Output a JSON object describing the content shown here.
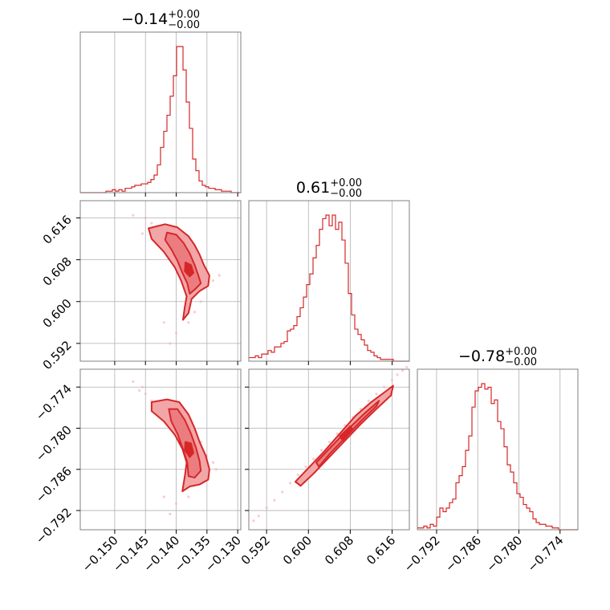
{
  "chart_data": {
    "type": "corner",
    "colors": {
      "line": "#d62728",
      "fill": "#f2a6a8",
      "scatter": "#f4b8bb",
      "grid": "#b0b0b0",
      "frame": "#808080"
    },
    "titles": [
      {
        "main": "−0.14",
        "sup": "+0.00",
        "sub": "−0.00"
      },
      {
        "main": "0.61",
        "sup": "+0.00",
        "sub": "−0.00"
      },
      {
        "main": "−0.78",
        "sup": "+0.00",
        "sub": "−0.00"
      }
    ],
    "params": [
      {
        "range": [
          -0.1556,
          -0.1295
        ],
        "ticks": [
          -0.15,
          -0.145,
          -0.14,
          -0.135,
          -0.13
        ],
        "tick_labels": [
          "−0.150",
          "−0.145",
          "−0.140",
          "−0.135",
          "−0.130"
        ]
      },
      {
        "range": [
          0.5886,
          0.6193
        ],
        "ticks": [
          0.592,
          0.6,
          0.608,
          0.616
        ],
        "tick_labels": [
          "0.592",
          "0.600",
          "0.608",
          "0.616"
        ]
      },
      {
        "range": [
          -0.7948,
          -0.7714
        ],
        "ticks": [
          -0.792,
          -0.786,
          -0.78,
          -0.774
        ],
        "tick_labels": [
          "−0.792",
          "−0.786",
          "−0.780",
          "−0.774"
        ]
      }
    ],
    "hist": [
      {
        "name": "param0",
        "bin_edges_start": -0.1556,
        "bin_width": 0.000522,
        "counts": [
          0,
          0,
          0,
          0,
          0,
          0,
          0,
          0,
          1,
          1,
          2,
          1,
          2,
          1,
          3,
          3,
          4,
          5,
          5,
          6,
          6,
          7,
          9,
          12,
          19,
          31,
          42,
          53,
          66,
          80,
          100,
          100,
          84,
          62,
          44,
          23,
          15,
          8,
          5,
          4,
          3,
          3,
          2,
          2,
          1,
          1,
          1,
          0,
          0,
          0
        ]
      },
      {
        "name": "param1",
        "bin_edges_start": 0.5886,
        "bin_width": 0.000614,
        "counts": [
          2,
          2,
          3,
          2,
          4,
          4,
          6,
          5,
          8,
          8,
          10,
          11,
          17,
          18,
          20,
          25,
          30,
          36,
          43,
          49,
          58,
          65,
          74,
          80,
          82,
          76,
          82,
          74,
          78,
          68,
          55,
          38,
          26,
          18,
          15,
          12,
          9,
          6,
          5,
          3,
          2,
          1,
          1,
          1,
          1,
          0,
          0,
          0,
          0,
          0
        ]
      },
      {
        "name": "param2",
        "bin_edges_start": -0.7948,
        "bin_width": 0.000468,
        "counts": [
          1,
          1,
          2,
          1,
          3,
          2,
          7,
          12,
          10,
          12,
          15,
          17,
          26,
          30,
          35,
          44,
          52,
          68,
          77,
          79,
          81,
          78,
          79,
          70,
          72,
          60,
          56,
          46,
          36,
          32,
          26,
          20,
          18,
          14,
          12,
          10,
          6,
          4,
          3,
          3,
          2,
          2,
          1,
          1,
          0,
          0,
          0,
          0,
          0,
          0
        ]
      }
    ],
    "panels_2d": [
      {
        "x_param": 0,
        "y_param": 1,
        "points": [
          [
            -0.147,
            0.6165
          ],
          [
            -0.1455,
            0.613
          ],
          [
            -0.144,
            0.615
          ],
          [
            -0.143,
            0.614
          ],
          [
            -0.142,
            0.612
          ],
          [
            -0.141,
            0.6125
          ],
          [
            -0.14,
            0.611
          ],
          [
            -0.139,
            0.61
          ],
          [
            -0.138,
            0.608
          ],
          [
            -0.1375,
            0.606
          ],
          [
            -0.137,
            0.604
          ],
          [
            -0.1365,
            0.602
          ],
          [
            -0.136,
            0.6
          ],
          [
            -0.137,
            0.598
          ],
          [
            -0.138,
            0.596
          ],
          [
            -0.14,
            0.594
          ],
          [
            -0.141,
            0.592
          ],
          [
            -0.135,
            0.603
          ],
          [
            -0.134,
            0.604
          ],
          [
            -0.136,
            0.607
          ],
          [
            -0.145,
            0.616
          ],
          [
            -0.1435,
            0.612
          ],
          [
            -0.1395,
            0.609
          ],
          [
            -0.1385,
            0.604
          ],
          [
            -0.142,
            0.596
          ],
          [
            -0.133,
            0.605
          ]
        ],
        "contour_outer": [
          [
            -0.1445,
            0.614
          ],
          [
            -0.1418,
            0.6148
          ],
          [
            -0.1398,
            0.6142
          ],
          [
            -0.138,
            0.6125
          ],
          [
            -0.137,
            0.6108
          ],
          [
            -0.1362,
            0.609
          ],
          [
            -0.1355,
            0.607
          ],
          [
            -0.1346,
            0.605
          ],
          [
            -0.1348,
            0.603
          ],
          [
            -0.1362,
            0.602
          ],
          [
            -0.1375,
            0.6005
          ],
          [
            -0.138,
            0.5978
          ],
          [
            -0.1389,
            0.5965
          ],
          [
            -0.1386,
            0.599
          ],
          [
            -0.1383,
            0.601
          ],
          [
            -0.1392,
            0.604
          ],
          [
            -0.1402,
            0.6065
          ],
          [
            -0.142,
            0.6095
          ],
          [
            -0.144,
            0.612
          ]
        ],
        "contour_inner": [
          [
            -0.1415,
            0.6132
          ],
          [
            -0.14,
            0.6128
          ],
          [
            -0.1388,
            0.6112
          ],
          [
            -0.1378,
            0.6092
          ],
          [
            -0.137,
            0.607
          ],
          [
            -0.1364,
            0.605
          ],
          [
            -0.136,
            0.6035
          ],
          [
            -0.1368,
            0.6025
          ],
          [
            -0.1378,
            0.6015
          ],
          [
            -0.1382,
            0.6035
          ],
          [
            -0.139,
            0.6055
          ],
          [
            -0.1398,
            0.6078
          ],
          [
            -0.1408,
            0.61
          ],
          [
            -0.1418,
            0.6118
          ]
        ],
        "contour_core": [
          [
            -0.1385,
            0.6075
          ],
          [
            -0.1376,
            0.607
          ],
          [
            -0.1372,
            0.6055
          ],
          [
            -0.1378,
            0.6048
          ],
          [
            -0.1386,
            0.6058
          ]
        ]
      },
      {
        "x_param": 0,
        "y_param": 2,
        "points": [
          [
            -0.147,
            -0.7732
          ],
          [
            -0.146,
            -0.7745
          ],
          [
            -0.145,
            -0.775
          ],
          [
            -0.144,
            -0.776
          ],
          [
            -0.143,
            -0.777
          ],
          [
            -0.142,
            -0.7765
          ],
          [
            -0.141,
            -0.7775
          ],
          [
            -0.14,
            -0.778
          ],
          [
            -0.139,
            -0.779
          ],
          [
            -0.138,
            -0.78
          ],
          [
            -0.1375,
            -0.7815
          ],
          [
            -0.137,
            -0.783
          ],
          [
            -0.1365,
            -0.785
          ],
          [
            -0.136,
            -0.787
          ],
          [
            -0.137,
            -0.788
          ],
          [
            -0.138,
            -0.79
          ],
          [
            -0.14,
            -0.791
          ],
          [
            -0.141,
            -0.7925
          ],
          [
            -0.135,
            -0.784
          ],
          [
            -0.134,
            -0.785
          ],
          [
            -0.136,
            -0.782
          ],
          [
            -0.1455,
            -0.774
          ],
          [
            -0.1395,
            -0.78
          ],
          [
            -0.142,
            -0.79
          ],
          [
            -0.1335,
            -0.786
          ]
        ],
        "contour_outer": [
          [
            -0.144,
            -0.7762
          ],
          [
            -0.1415,
            -0.7758
          ],
          [
            -0.1395,
            -0.7762
          ],
          [
            -0.138,
            -0.778
          ],
          [
            -0.137,
            -0.78
          ],
          [
            -0.1362,
            -0.782
          ],
          [
            -0.1352,
            -0.784
          ],
          [
            -0.1346,
            -0.786
          ],
          [
            -0.1348,
            -0.7875
          ],
          [
            -0.1362,
            -0.7882
          ],
          [
            -0.1378,
            -0.7885
          ],
          [
            -0.139,
            -0.7892
          ],
          [
            -0.1386,
            -0.787
          ],
          [
            -0.1383,
            -0.785
          ],
          [
            -0.139,
            -0.783
          ],
          [
            -0.1402,
            -0.781
          ],
          [
            -0.142,
            -0.779
          ],
          [
            -0.144,
            -0.7775
          ]
        ],
        "contour_inner": [
          [
            -0.1412,
            -0.7772
          ],
          [
            -0.1398,
            -0.7772
          ],
          [
            -0.1386,
            -0.7788
          ],
          [
            -0.1376,
            -0.7808
          ],
          [
            -0.1368,
            -0.7828
          ],
          [
            -0.1362,
            -0.7848
          ],
          [
            -0.136,
            -0.7862
          ],
          [
            -0.137,
            -0.7872
          ],
          [
            -0.138,
            -0.787
          ],
          [
            -0.1382,
            -0.785
          ],
          [
            -0.139,
            -0.7828
          ],
          [
            -0.1398,
            -0.7808
          ],
          [
            -0.1408,
            -0.779
          ]
        ],
        "contour_core": [
          [
            -0.1385,
            -0.782
          ],
          [
            -0.1376,
            -0.7822
          ],
          [
            -0.1372,
            -0.7836
          ],
          [
            -0.1378,
            -0.7842
          ],
          [
            -0.1386,
            -0.7832
          ]
        ]
      },
      {
        "x_param": 1,
        "y_param": 2,
        "points": [
          [
            0.5895,
            -0.7935
          ],
          [
            0.5905,
            -0.7928
          ],
          [
            0.592,
            -0.7916
          ],
          [
            0.5935,
            -0.7905
          ],
          [
            0.595,
            -0.7893
          ],
          [
            0.5965,
            -0.788
          ],
          [
            0.598,
            -0.7868
          ],
          [
            0.5995,
            -0.7856
          ],
          [
            0.601,
            -0.7845
          ],
          [
            0.6025,
            -0.7832
          ],
          [
            0.604,
            -0.782
          ],
          [
            0.6055,
            -0.7808
          ],
          [
            0.607,
            -0.7796
          ],
          [
            0.6085,
            -0.7784
          ],
          [
            0.61,
            -0.7772
          ],
          [
            0.6115,
            -0.776
          ],
          [
            0.613,
            -0.775
          ],
          [
            0.6145,
            -0.774
          ],
          [
            0.616,
            -0.773
          ],
          [
            0.617,
            -0.7722
          ],
          [
            0.618,
            -0.7716
          ],
          [
            0.6188,
            -0.7711
          ]
        ],
        "contour_outer": [
          [
            0.5975,
            -0.7878
          ],
          [
            0.6,
            -0.7858
          ],
          [
            0.603,
            -0.7834
          ],
          [
            0.606,
            -0.7808
          ],
          [
            0.609,
            -0.7782
          ],
          [
            0.612,
            -0.7762
          ],
          [
            0.615,
            -0.7745
          ],
          [
            0.6162,
            -0.7738
          ],
          [
            0.6158,
            -0.7752
          ],
          [
            0.613,
            -0.7772
          ],
          [
            0.61,
            -0.7794
          ],
          [
            0.607,
            -0.7818
          ],
          [
            0.604,
            -0.7842
          ],
          [
            0.601,
            -0.7866
          ],
          [
            0.5985,
            -0.7884
          ]
        ],
        "contour_inner": [
          [
            0.6015,
            -0.785
          ],
          [
            0.6045,
            -0.7826
          ],
          [
            0.6075,
            -0.7802
          ],
          [
            0.6105,
            -0.778
          ],
          [
            0.6135,
            -0.776
          ],
          [
            0.613,
            -0.7768
          ],
          [
            0.61,
            -0.779
          ],
          [
            0.607,
            -0.7814
          ],
          [
            0.604,
            -0.7838
          ],
          [
            0.602,
            -0.7856
          ]
        ],
        "contour_core": [
          [
            0.606,
            -0.7812
          ],
          [
            0.608,
            -0.7797
          ],
          [
            0.6085,
            -0.7802
          ],
          [
            0.6066,
            -0.7818
          ]
        ]
      }
    ]
  }
}
